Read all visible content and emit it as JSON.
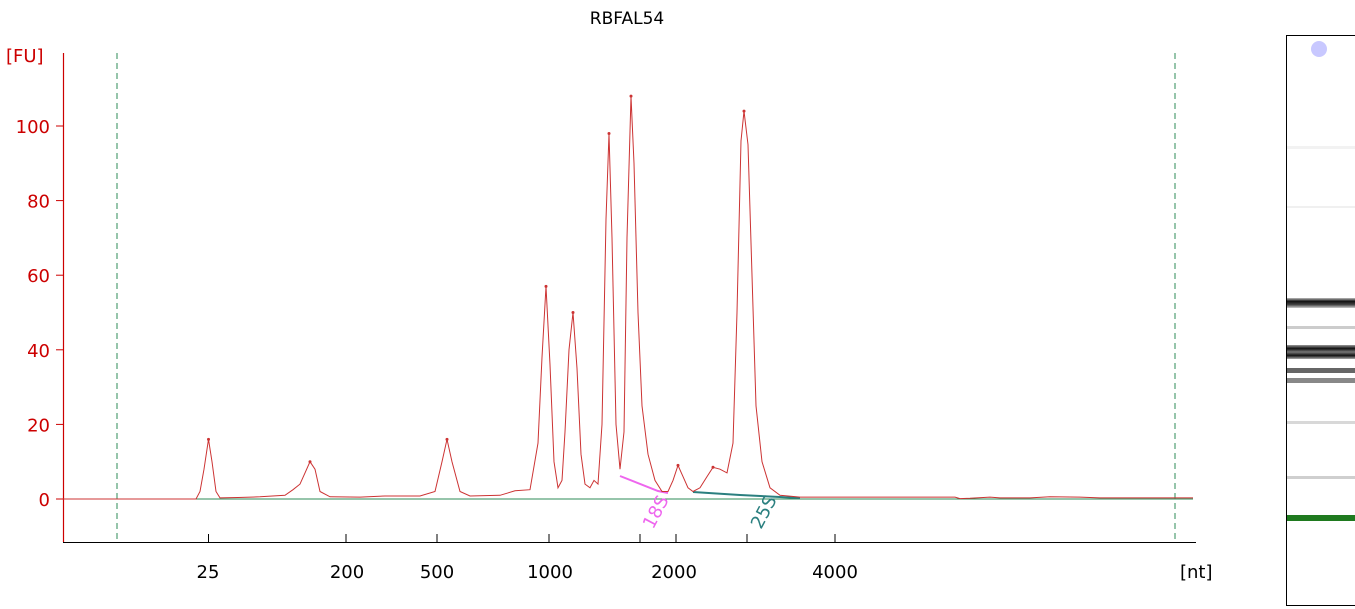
{
  "chart_data": {
    "type": "line",
    "title": "RBFAL54",
    "ylabel": "[FU]",
    "xlabel": "[nt]",
    "ylim": [
      -11,
      120
    ],
    "y_ticks": [
      0,
      20,
      40,
      60,
      80,
      100
    ],
    "x_tick_labels": [
      "25",
      "200",
      "500",
      "1000",
      "2000",
      "4000"
    ],
    "grid": false,
    "colors": {
      "trace": "#cc3333",
      "axis": "#cc0000",
      "baseline": "#2e8b57",
      "marker18S": "#ee66ee",
      "marker25S": "#2a7f7f",
      "gel_marker": "#1f7a1f"
    },
    "annotations": [
      {
        "label": "18S",
        "color": "#ee66ee"
      },
      {
        "label": "25S",
        "color": "#2a7f7f"
      }
    ],
    "peaks": [
      {
        "x": 208.5,
        "y": 16
      },
      {
        "x": 310,
        "y": 10
      },
      {
        "x": 447,
        "y": 16
      },
      {
        "x": 546,
        "y": 57
      },
      {
        "x": 573,
        "y": 50
      },
      {
        "x": 609,
        "y": 98
      },
      {
        "x": 631,
        "y": 108
      },
      {
        "x": 678,
        "y": 9
      },
      {
        "x": 713,
        "y": 8.5
      },
      {
        "x": 744,
        "y": 104
      }
    ],
    "series": [
      {
        "values": [
          [
            63,
            0
          ],
          [
            196,
            0
          ],
          [
            200,
            2
          ],
          [
            204,
            8
          ],
          [
            208.5,
            16
          ],
          [
            212,
            10
          ],
          [
            216,
            2
          ],
          [
            220,
            0.3
          ],
          [
            238,
            0.4
          ],
          [
            260,
            0.6
          ],
          [
            285,
            1
          ],
          [
            293,
            2.5
          ],
          [
            300,
            4
          ],
          [
            305,
            7
          ],
          [
            310,
            10
          ],
          [
            315,
            8
          ],
          [
            320,
            2
          ],
          [
            330,
            0.6
          ],
          [
            360,
            0.5
          ],
          [
            385,
            0.8
          ],
          [
            420,
            0.8
          ],
          [
            435,
            2
          ],
          [
            442,
            10
          ],
          [
            447,
            16
          ],
          [
            452,
            10
          ],
          [
            460,
            2
          ],
          [
            470,
            0.8
          ],
          [
            500,
            1
          ],
          [
            515,
            2.2
          ],
          [
            530,
            2.5
          ],
          [
            538,
            15
          ],
          [
            542,
            38
          ],
          [
            546,
            57
          ],
          [
            550,
            36
          ],
          [
            554,
            10
          ],
          [
            558,
            3
          ],
          [
            562,
            5
          ],
          [
            565,
            18
          ],
          [
            569,
            40
          ],
          [
            573,
            50
          ],
          [
            577,
            35
          ],
          [
            581,
            12
          ],
          [
            585,
            4
          ],
          [
            590,
            3
          ],
          [
            594,
            5
          ],
          [
            598,
            4
          ],
          [
            602,
            20
          ],
          [
            606,
            75
          ],
          [
            609,
            98
          ],
          [
            612,
            70
          ],
          [
            616,
            20
          ],
          [
            620,
            8
          ],
          [
            624,
            18
          ],
          [
            627,
            70
          ],
          [
            631,
            108
          ],
          [
            634,
            90
          ],
          [
            638,
            50
          ],
          [
            642,
            25
          ],
          [
            648,
            12
          ],
          [
            655,
            5
          ],
          [
            662,
            2
          ],
          [
            668,
            2
          ],
          [
            673,
            5
          ],
          [
            678,
            9
          ],
          [
            683,
            6
          ],
          [
            688,
            3
          ],
          [
            693,
            2
          ],
          [
            700,
            3
          ],
          [
            707,
            6
          ],
          [
            713,
            8.5
          ],
          [
            720,
            8
          ],
          [
            727,
            7
          ],
          [
            733,
            15
          ],
          [
            737,
            50
          ],
          [
            741,
            96
          ],
          [
            744,
            104
          ],
          [
            748,
            95
          ],
          [
            752,
            60
          ],
          [
            756,
            25
          ],
          [
            762,
            10
          ],
          [
            770,
            3
          ],
          [
            780,
            1
          ],
          [
            800,
            0.5
          ],
          [
            955,
            0.5
          ],
          [
            960,
            0.1
          ],
          [
            970,
            0.2
          ],
          [
            990,
            0.5
          ],
          [
            1000,
            0.3
          ],
          [
            1030,
            0.3
          ],
          [
            1050,
            0.6
          ],
          [
            1080,
            0.5
          ],
          [
            1100,
            0.3
          ],
          [
            1140,
            0.3
          ],
          [
            1180,
            0.3
          ],
          [
            1193,
            0.3
          ]
        ]
      }
    ]
  }
}
